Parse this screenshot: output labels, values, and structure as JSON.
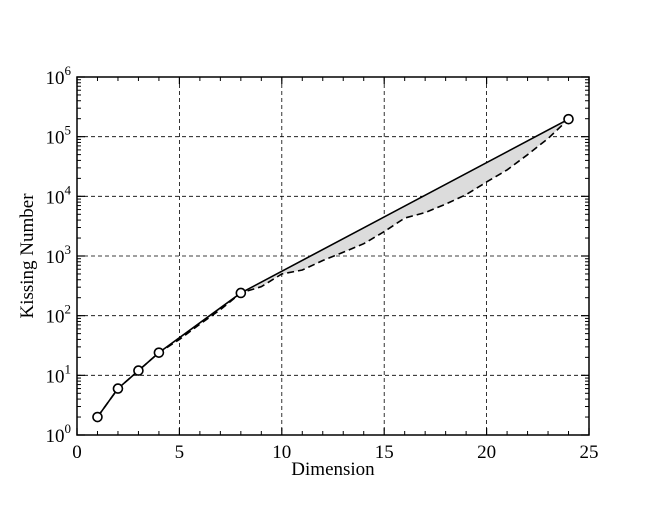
{
  "chart_data": {
    "type": "line",
    "title": "",
    "xlabel": "Dimension",
    "ylabel": "Kissing Number",
    "xlim": [
      0,
      25
    ],
    "ylim": [
      1,
      1000000
    ],
    "yscale": "log",
    "grid": true,
    "x_ticks": [
      0,
      5,
      10,
      15,
      20,
      25
    ],
    "y_ticks": [
      {
        "base": "10",
        "exp": "0"
      },
      {
        "base": "10",
        "exp": "1"
      },
      {
        "base": "10",
        "exp": "2"
      },
      {
        "base": "10",
        "exp": "3"
      },
      {
        "base": "10",
        "exp": "4"
      },
      {
        "base": "10",
        "exp": "5"
      },
      {
        "base": "10",
        "exp": "6"
      }
    ],
    "series": [
      {
        "style": "solid-with-circle-markers",
        "x": [
          1,
          2,
          3,
          4,
          8,
          24
        ],
        "y": [
          2,
          6,
          12,
          24,
          240,
          196560
        ]
      },
      {
        "style": "dashed",
        "x": [
          1,
          2,
          3,
          4,
          5,
          6,
          7,
          8,
          9,
          10,
          11,
          12,
          13,
          14,
          15,
          16,
          17,
          18,
          19,
          20,
          21,
          22,
          23,
          24
        ],
        "y": [
          2,
          6,
          12,
          24,
          40,
          72,
          126,
          240,
          306,
          500,
          582,
          840,
          1154,
          1606,
          2564,
          4320,
          5346,
          7398,
          10668,
          17400,
          27720,
          49896,
          93150,
          196560
        ]
      }
    ],
    "shaded_region": "between the solid and dashed series",
    "colors": {
      "line": "#000000",
      "fill": "#dcdcdc",
      "grid": "#000000"
    }
  }
}
